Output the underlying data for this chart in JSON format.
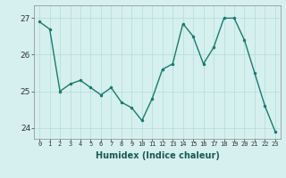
{
  "x": [
    0,
    1,
    2,
    3,
    4,
    5,
    6,
    7,
    8,
    9,
    10,
    11,
    12,
    13,
    14,
    15,
    16,
    17,
    18,
    19,
    20,
    21,
    22,
    23
  ],
  "y": [
    26.9,
    26.7,
    25.0,
    25.2,
    25.3,
    25.1,
    24.9,
    25.1,
    24.7,
    24.55,
    24.2,
    24.8,
    25.6,
    25.75,
    26.85,
    26.5,
    25.75,
    26.2,
    27.0,
    27.0,
    26.4,
    25.5,
    24.6,
    23.9
  ],
  "line_color": "#1a7a6e",
  "bg_color": "#d6f0ef",
  "grid_color": "#b0ddd9",
  "xlabel": "Humidex (Indice chaleur)",
  "ylim": [
    23.7,
    27.35
  ],
  "xlim": [
    -0.5,
    23.5
  ],
  "yticks": [
    24,
    25,
    26,
    27
  ],
  "xticks": [
    0,
    1,
    2,
    3,
    4,
    5,
    6,
    7,
    8,
    9,
    10,
    11,
    12,
    13,
    14,
    15,
    16,
    17,
    18,
    19,
    20,
    21,
    22,
    23
  ],
  "markersize": 3,
  "linewidth": 1.0
}
